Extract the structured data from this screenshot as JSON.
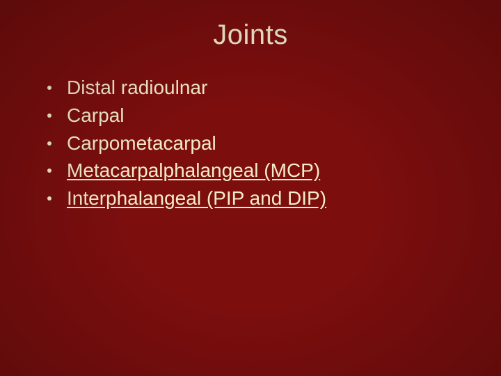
{
  "slide": {
    "title": "Joints",
    "title_color": "#f5eccb",
    "title_fontsize": 40,
    "background_color": "#7c0e0e",
    "text_color": "#f5eccb",
    "bullet_color": "#f5eccb",
    "item_fontsize": 28,
    "items": [
      {
        "label": "Distal radioulnar",
        "underline": false
      },
      {
        "label": "Carpal",
        "underline": false
      },
      {
        "label": "Carpometacarpal",
        "underline": false
      },
      {
        "label": "Metacarpalphalangeal (MCP)",
        "underline": true
      },
      {
        "label": "Interphalangeal (PIP and DIP)",
        "underline": true
      }
    ]
  }
}
